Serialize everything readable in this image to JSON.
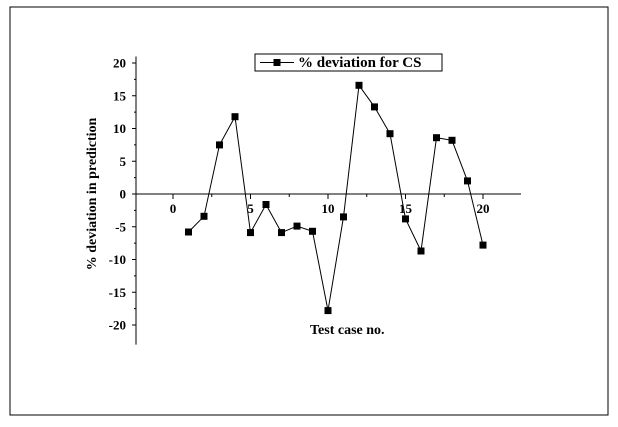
{
  "chart_data": {
    "type": "line",
    "title": "",
    "xlabel": "Test case no.",
    "ylabel": "% deviation in prediction",
    "xlim": [
      -2,
      22
    ],
    "ylim": [
      -23,
      21
    ],
    "x_ticks": [
      0,
      5,
      10,
      15,
      20
    ],
    "y_ticks": [
      20,
      15,
      10,
      5,
      0,
      -5,
      -10,
      -15,
      -20
    ],
    "grid": false,
    "legend_position": "top",
    "series": [
      {
        "name": "% deviation for CS",
        "color": "#000000",
        "marker": "square",
        "x": [
          1,
          2,
          3,
          4,
          5,
          6,
          7,
          8,
          9,
          10,
          11,
          12,
          13,
          14,
          15,
          16,
          17,
          18,
          19,
          20
        ],
        "y": [
          -5.8,
          -3.4,
          7.5,
          11.8,
          -5.9,
          -1.6,
          -5.9,
          -4.9,
          -5.7,
          -17.8,
          -3.5,
          16.6,
          13.3,
          9.2,
          -3.8,
          -8.7,
          8.6,
          8.2,
          2.0,
          -7.8
        ]
      }
    ]
  }
}
